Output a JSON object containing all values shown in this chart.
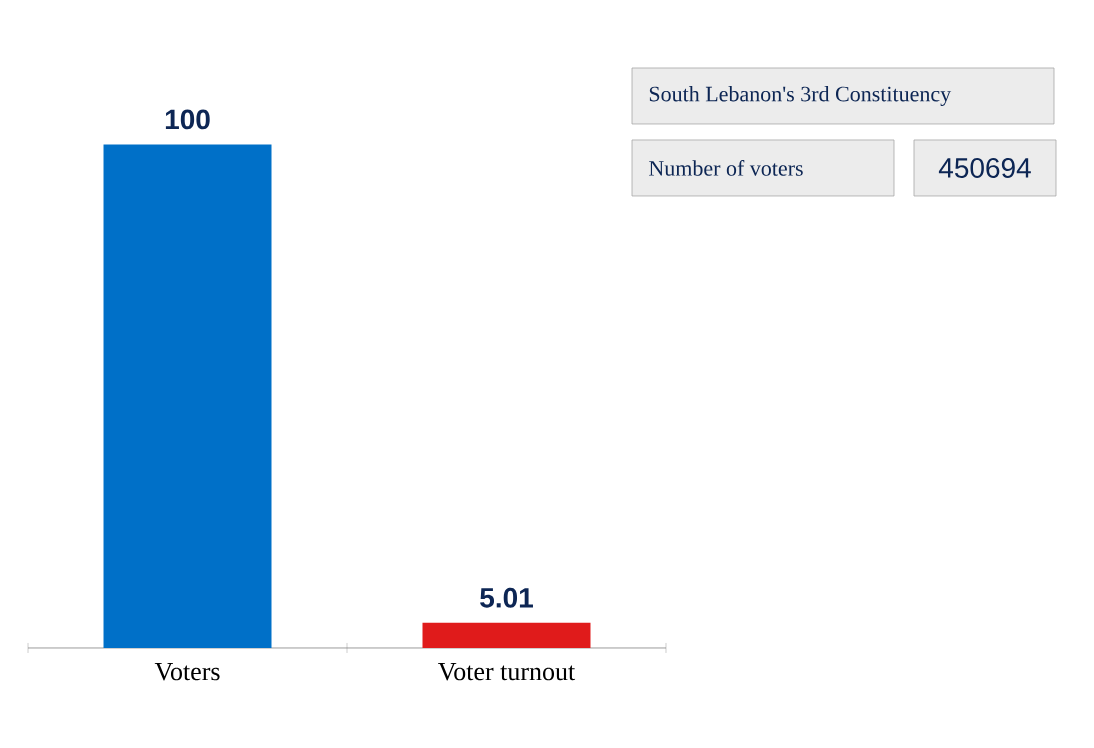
{
  "chart_data": {
    "type": "bar",
    "categories": [
      "Voters",
      "Voter turnout"
    ],
    "values": [
      100,
      5.01
    ],
    "colors": [
      "#0070c8",
      "#e01b1b"
    ],
    "data_labels": true,
    "annotations": [
      "South Lebanon's 3rd Constituency",
      "Number of voters",
      "450694"
    ]
  }
}
